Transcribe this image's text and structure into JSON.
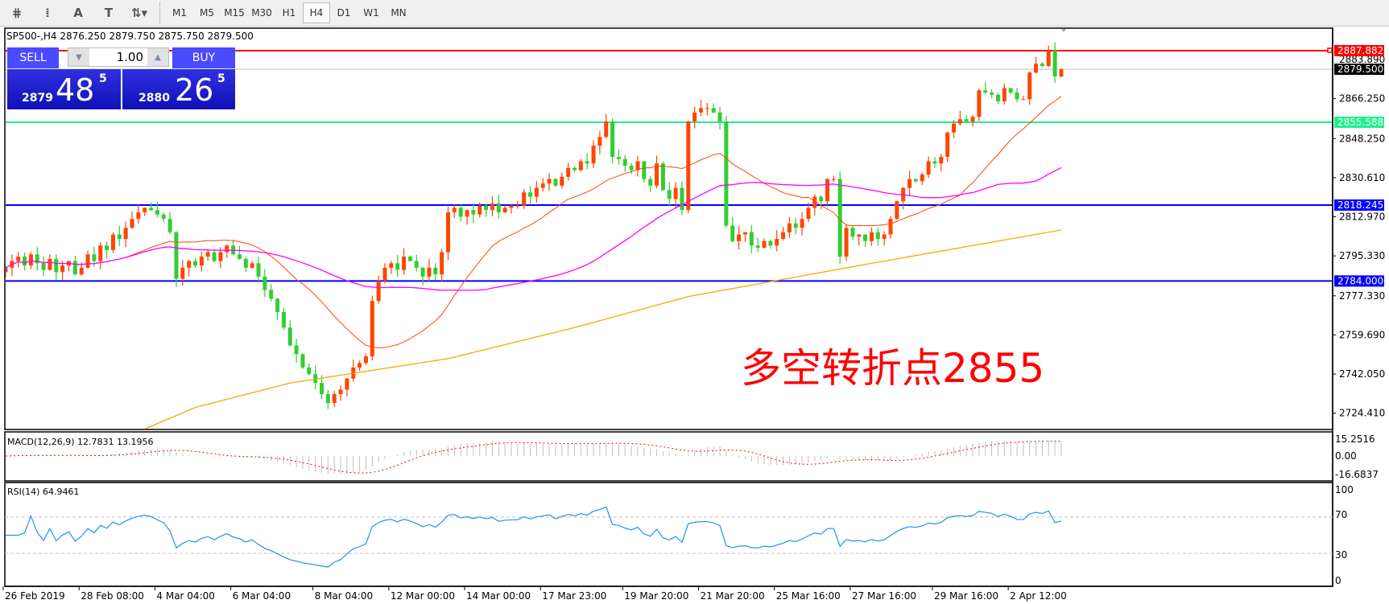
{
  "toolbar": {
    "tools": [
      {
        "icon": "fibonacci-expansion-icon",
        "glyph": "⋕"
      },
      {
        "icon": "fibonacci-fan-icon",
        "glyph": "⁞"
      },
      {
        "icon": "text-icon",
        "glyph": "A"
      },
      {
        "icon": "text-label-icon",
        "glyph": "T"
      },
      {
        "icon": "arrows-dropdown-icon",
        "glyph": "⇅▾"
      }
    ],
    "timeframes": [
      "M1",
      "M5",
      "M15",
      "M30",
      "H1",
      "H4",
      "D1",
      "W1",
      "MN"
    ],
    "active_timeframe": "H4"
  },
  "chart_header": "SP500-,H4  2876.250 2879.750 2875.750 2879.500",
  "trade_panel": {
    "sell_label": "SELL",
    "buy_label": "BUY",
    "lot": "1.00",
    "sell_price": {
      "prefix": "2879",
      "big": "48",
      "sup": "5"
    },
    "buy_price": {
      "prefix": "2880",
      "big": "26",
      "sup": "5"
    }
  },
  "annotation": "多空转折点2855",
  "colors": {
    "up": "#ff4500",
    "down": "#32cd32",
    "ma_fast": "#ff4500",
    "ma_mid": "#ff00ff",
    "ma_slow": "#ffa500",
    "rsi": "#1e90ff",
    "macd_hist": "#c0c0c0",
    "macd_signal": "#ff0000"
  },
  "chart_data": [
    {
      "type": "candlestick",
      "symbol": "SP500-",
      "timeframe": "H4",
      "last_ohlc": [
        2876.25,
        2879.75,
        2875.75,
        2879.5
      ],
      "closes": [
        2790,
        2793,
        2795,
        2791,
        2796,
        2792,
        2789,
        2794,
        2788,
        2791,
        2793,
        2787,
        2790,
        2796,
        2793,
        2800,
        2798,
        2805,
        2803,
        2808,
        2812,
        2815,
        2817,
        2816,
        2814,
        2812,
        2806,
        2785,
        2790,
        2793,
        2791,
        2795,
        2797,
        2793,
        2797,
        2800,
        2796,
        2794,
        2790,
        2792,
        2786,
        2780,
        2776,
        2770,
        2763,
        2755,
        2751,
        2745,
        2742,
        2738,
        2733,
        2729,
        2733,
        2735,
        2740,
        2745,
        2747,
        2750,
        2775,
        2784,
        2790,
        2792,
        2789,
        2795,
        2793,
        2790,
        2786,
        2790,
        2787,
        2797,
        2815,
        2817,
        2813,
        2816,
        2814,
        2818,
        2816,
        2819,
        2815,
        2817,
        2818,
        2818,
        2824,
        2822,
        2826,
        2828,
        2830,
        2827,
        2831,
        2835,
        2834,
        2838,
        2837,
        2845,
        2849,
        2856,
        2840,
        2839,
        2836,
        2834,
        2838,
        2830,
        2827,
        2837,
        2825,
        2821,
        2826,
        2816,
        2856,
        2860,
        2862,
        2862,
        2860,
        2856,
        2809,
        2802,
        2805,
        2806,
        2800,
        2799,
        2802,
        2800,
        2803,
        2806,
        2810,
        2808,
        2812,
        2817,
        2822,
        2820,
        2830,
        2830,
        2795,
        2808,
        2804,
        2805,
        2802,
        2806,
        2803,
        2805,
        2812,
        2820,
        2826,
        2830,
        2829,
        2832,
        2838,
        2837,
        2840,
        2851,
        2855,
        2857,
        2856,
        2858,
        2870,
        2869,
        2868,
        2865,
        2871,
        2869,
        2866,
        2866,
        2878,
        2882,
        2881,
        2888,
        2876.25,
        2879.5
      ],
      "ma_slow_points": [
        [
          21,
          2716
        ],
        [
          30,
          2727
        ],
        [
          45,
          2738
        ],
        [
          70,
          2749
        ],
        [
          90,
          2763
        ],
        [
          108,
          2777
        ],
        [
          137,
          2792
        ],
        [
          167,
          2807
        ]
      ],
      "price_axis_ticks": [
        "2866.250",
        "2848.250",
        "2830.610",
        "2812.970",
        "2795.330",
        "2777.330",
        "2759.690",
        "2742.050",
        "2724.410"
      ],
      "price_range": [
        2717,
        2895
      ],
      "extra_label": "2883.890",
      "horizontal_lines": [
        {
          "price": 2887.882,
          "label": "2887.882",
          "color": "#ff0000"
        },
        {
          "price": 2879.5,
          "label": "2879.500",
          "color": "#c0c0c0",
          "label_bg": "#000000"
        },
        {
          "price": 2855.588,
          "label": "2855.588",
          "color": "#1ef08a"
        },
        {
          "price": 2818.245,
          "label": "2818.245",
          "color": "#0000ff"
        },
        {
          "price": 2784.0,
          "label": "2784.000",
          "color": "#0000ff"
        }
      ],
      "time_labels": [
        {
          "i": 0,
          "label": "26 Feb 2019"
        },
        {
          "i": 12,
          "label": "28 Feb 08:00"
        },
        {
          "i": 24,
          "label": "4 Mar 04:00"
        },
        {
          "i": 36,
          "label": "6 Mar 04:00"
        },
        {
          "i": 49,
          "label": "8 Mar 04:00"
        },
        {
          "i": 61,
          "label": "12 Mar 00:00"
        },
        {
          "i": 73,
          "label": "14 Mar 00:00"
        },
        {
          "i": 85,
          "label": "17 Mar 23:00"
        },
        {
          "i": 98,
          "label": "19 Mar 20:00"
        },
        {
          "i": 110,
          "label": "21 Mar 20:00"
        },
        {
          "i": 122,
          "label": "25 Mar 16:00"
        },
        {
          "i": 134,
          "label": "27 Mar 16:00"
        },
        {
          "i": 147,
          "label": "29 Mar 16:00"
        },
        {
          "i": 159,
          "label": "2 Apr 12:00"
        }
      ]
    },
    {
      "type": "bar",
      "title": "MACD(12,26,9) 12.7831 13.1956",
      "ticks": [
        "15.2516",
        "0.00",
        "-16.6837"
      ],
      "range": [
        -16.6837,
        15.2516
      ]
    },
    {
      "type": "line",
      "title": "RSI(14) 64.9461",
      "ticks": [
        "100",
        "70",
        "30",
        "0"
      ],
      "levels": [
        70,
        30
      ],
      "range": [
        0,
        100
      ]
    }
  ]
}
